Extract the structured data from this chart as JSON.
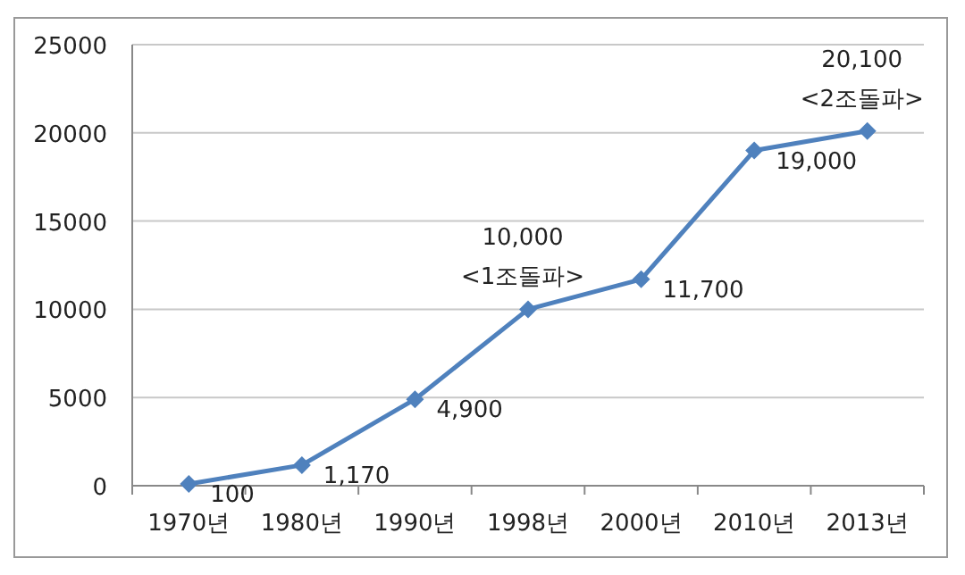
{
  "chart_data": {
    "type": "line",
    "categories": [
      "1970년",
      "1980년",
      "1990년",
      "1998년",
      "2000년",
      "2010년",
      "2013년"
    ],
    "values": [
      100,
      1170,
      4900,
      10000,
      11700,
      19000,
      20100
    ],
    "value_labels": [
      "100",
      "1,170",
      "4,900",
      "10,000",
      "11,700",
      "19,000",
      "20,100"
    ],
    "color": "#4f81bd",
    "ylim": [
      0,
      25000
    ],
    "yticks": [
      0,
      5000,
      10000,
      15000,
      20000,
      25000
    ],
    "grid": "y",
    "marker": "diamond",
    "line_style": "solid",
    "legend": false,
    "annotations": [
      {
        "text": "<1조돌파>",
        "x": "1998년",
        "y": 10000
      },
      {
        "text": "<2조돌파>",
        "x": "2013년",
        "y": 20100
      }
    ]
  }
}
